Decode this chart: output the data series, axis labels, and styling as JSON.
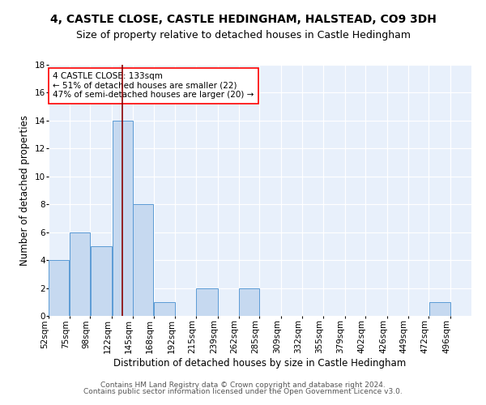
{
  "title": "4, CASTLE CLOSE, CASTLE HEDINGHAM, HALSTEAD, CO9 3DH",
  "subtitle": "Size of property relative to detached houses in Castle Hedingham",
  "xlabel": "Distribution of detached houses by size in Castle Hedingham",
  "ylabel": "Number of detached properties",
  "bin_edges": [
    52,
    75,
    98,
    122,
    145,
    168,
    192,
    215,
    239,
    262,
    285,
    309,
    332,
    355,
    379,
    402,
    426,
    449,
    472,
    496,
    519
  ],
  "counts": [
    4,
    6,
    5,
    14,
    8,
    1,
    0,
    2,
    0,
    2,
    0,
    0,
    0,
    0,
    0,
    0,
    0,
    0,
    1,
    0
  ],
  "bar_color": "#c6d9f0",
  "bar_edge_color": "#5b9bd5",
  "property_line_x": 133,
  "property_line_color": "#8B0000",
  "ylim": [
    0,
    18
  ],
  "yticks": [
    0,
    2,
    4,
    6,
    8,
    10,
    12,
    14,
    16,
    18
  ],
  "annotation_text": "4 CASTLE CLOSE: 133sqm\n← 51% of detached houses are smaller (22)\n47% of semi-detached houses are larger (20) →",
  "annotation_box_color": "white",
  "annotation_box_edge_color": "red",
  "footer1": "Contains HM Land Registry data © Crown copyright and database right 2024.",
  "footer2": "Contains public sector information licensed under the Open Government Licence v3.0.",
  "background_color": "#e8f0fb",
  "grid_color": "white",
  "title_fontsize": 10,
  "subtitle_fontsize": 9,
  "axis_label_fontsize": 8.5,
  "tick_label_fontsize": 7.5,
  "annotation_fontsize": 7.5,
  "footer_fontsize": 6.5
}
